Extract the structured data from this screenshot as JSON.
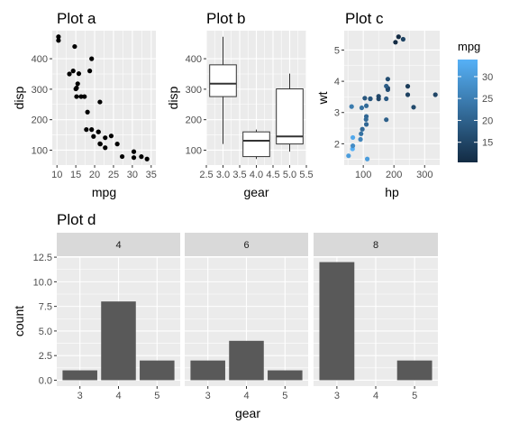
{
  "chart_data": [
    {
      "id": "a",
      "type": "scatter",
      "title": "Plot a",
      "xlabel": "mpg",
      "ylabel": "disp",
      "xlim": [
        10,
        35
      ],
      "ylim": [
        71.1,
        472
      ],
      "xticks": [
        10,
        15,
        20,
        25,
        30,
        35
      ],
      "yticks": [
        100,
        200,
        300,
        400
      ],
      "grid": true,
      "points": [
        {
          "x": 21.0,
          "y": 160
        },
        {
          "x": 21.0,
          "y": 160
        },
        {
          "x": 22.8,
          "y": 108
        },
        {
          "x": 21.4,
          "y": 258
        },
        {
          "x": 18.7,
          "y": 360
        },
        {
          "x": 18.1,
          "y": 225
        },
        {
          "x": 14.3,
          "y": 360
        },
        {
          "x": 24.4,
          "y": 146.7
        },
        {
          "x": 22.8,
          "y": 140.8
        },
        {
          "x": 19.2,
          "y": 167.6
        },
        {
          "x": 17.8,
          "y": 167.6
        },
        {
          "x": 16.4,
          "y": 275.8
        },
        {
          "x": 17.3,
          "y": 275.8
        },
        {
          "x": 15.2,
          "y": 275.8
        },
        {
          "x": 10.4,
          "y": 472
        },
        {
          "x": 10.4,
          "y": 460
        },
        {
          "x": 14.7,
          "y": 440
        },
        {
          "x": 32.4,
          "y": 78.7
        },
        {
          "x": 30.4,
          "y": 75.7
        },
        {
          "x": 33.9,
          "y": 71.1
        },
        {
          "x": 21.5,
          "y": 120.1
        },
        {
          "x": 15.5,
          "y": 318
        },
        {
          "x": 15.2,
          "y": 304
        },
        {
          "x": 13.3,
          "y": 350
        },
        {
          "x": 19.2,
          "y": 400
        },
        {
          "x": 27.3,
          "y": 79
        },
        {
          "x": 26.0,
          "y": 120.3
        },
        {
          "x": 30.4,
          "y": 95.1
        },
        {
          "x": 15.8,
          "y": 351
        },
        {
          "x": 19.7,
          "y": 145
        },
        {
          "x": 15.0,
          "y": 301
        },
        {
          "x": 21.4,
          "y": 121
        }
      ]
    },
    {
      "id": "b",
      "type": "box",
      "title": "Plot b",
      "xlabel": "gear",
      "ylabel": "disp",
      "xlim": [
        2.5,
        5.5
      ],
      "ylim": [
        71.1,
        472
      ],
      "xticks": [
        2.5,
        3.0,
        3.5,
        4.0,
        4.5,
        5.0,
        5.5
      ],
      "xticklabels": [
        "2.5",
        "3.0",
        "3.5",
        "4.0",
        "4.5",
        "5.0",
        "5.5"
      ],
      "yticks": [
        100,
        200,
        300,
        400
      ],
      "grid": true,
      "boxes": [
        {
          "x": 3,
          "min": 120.1,
          "q1": 275.8,
          "median": 318,
          "q3": 380,
          "max": 472
        },
        {
          "x": 4,
          "min": 71.1,
          "q1": 78.9,
          "median": 130.9,
          "q3": 160,
          "max": 167.6
        },
        {
          "x": 5,
          "min": 95.1,
          "q1": 120.3,
          "median": 145,
          "q3": 301,
          "max": 351
        }
      ]
    },
    {
      "id": "c",
      "type": "scatter",
      "title": "Plot c",
      "xlabel": "hp",
      "ylabel": "wt",
      "xlim": [
        52,
        335
      ],
      "ylim": [
        1.513,
        5.424
      ],
      "xticks": [
        100,
        200,
        300
      ],
      "yticks": [
        2,
        3,
        4,
        5
      ],
      "grid": true,
      "legend": {
        "title": "mpg",
        "type": "colorbar",
        "min": 10.4,
        "max": 33.9,
        "ticks": [
          15,
          20,
          25,
          30
        ],
        "low_color": "#132B43",
        "high_color": "#56B1F7",
        "position": "right"
      },
      "points": [
        {
          "x": 110,
          "y": 2.62,
          "c": 21.0
        },
        {
          "x": 110,
          "y": 2.875,
          "c": 21.0
        },
        {
          "x": 93,
          "y": 2.32,
          "c": 22.8
        },
        {
          "x": 110,
          "y": 3.215,
          "c": 21.4
        },
        {
          "x": 175,
          "y": 3.44,
          "c": 18.7
        },
        {
          "x": 105,
          "y": 3.46,
          "c": 18.1
        },
        {
          "x": 245,
          "y": 3.57,
          "c": 14.3
        },
        {
          "x": 62,
          "y": 3.19,
          "c": 24.4
        },
        {
          "x": 95,
          "y": 3.15,
          "c": 22.8
        },
        {
          "x": 123,
          "y": 3.44,
          "c": 19.2
        },
        {
          "x": 123,
          "y": 3.44,
          "c": 17.8
        },
        {
          "x": 180,
          "y": 4.07,
          "c": 16.4
        },
        {
          "x": 180,
          "y": 3.73,
          "c": 17.3
        },
        {
          "x": 180,
          "y": 3.78,
          "c": 15.2
        },
        {
          "x": 205,
          "y": 5.25,
          "c": 10.4
        },
        {
          "x": 215,
          "y": 5.424,
          "c": 10.4
        },
        {
          "x": 230,
          "y": 5.345,
          "c": 14.7
        },
        {
          "x": 66,
          "y": 2.2,
          "c": 32.4
        },
        {
          "x": 52,
          "y": 1.615,
          "c": 30.4
        },
        {
          "x": 65,
          "y": 1.835,
          "c": 33.9
        },
        {
          "x": 97,
          "y": 2.465,
          "c": 21.5
        },
        {
          "x": 150,
          "y": 3.52,
          "c": 15.5
        },
        {
          "x": 150,
          "y": 3.435,
          "c": 15.2
        },
        {
          "x": 245,
          "y": 3.84,
          "c": 13.3
        },
        {
          "x": 175,
          "y": 3.845,
          "c": 19.2
        },
        {
          "x": 66,
          "y": 1.935,
          "c": 27.3
        },
        {
          "x": 91,
          "y": 2.14,
          "c": 26.0
        },
        {
          "x": 113,
          "y": 1.513,
          "c": 30.4
        },
        {
          "x": 264,
          "y": 3.17,
          "c": 15.8
        },
        {
          "x": 175,
          "y": 2.77,
          "c": 19.7
        },
        {
          "x": 335,
          "y": 3.57,
          "c": 15.0
        },
        {
          "x": 109,
          "y": 2.78,
          "c": 21.4
        }
      ]
    },
    {
      "id": "d",
      "type": "bar",
      "title": "Plot d",
      "xlabel": "gear",
      "ylabel": "count",
      "ylim": [
        0,
        12
      ],
      "yticks": [
        0,
        2.5,
        5,
        7.5,
        10,
        12.5
      ],
      "yticklabels": [
        "0.0",
        "2.5",
        "5.0",
        "7.5",
        "10.0",
        "12.5"
      ],
      "categories": [
        "3",
        "4",
        "5"
      ],
      "facets": [
        {
          "label": "4",
          "values": [
            1,
            8,
            2
          ]
        },
        {
          "label": "6",
          "values": [
            2,
            4,
            1
          ]
        },
        {
          "label": "8",
          "values": [
            12,
            0,
            2
          ]
        }
      ],
      "bar_color": "#595959",
      "grid": true
    }
  ]
}
